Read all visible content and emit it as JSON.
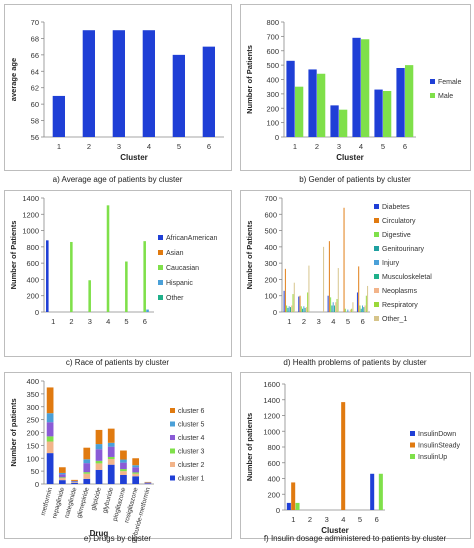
{
  "colors": {
    "blue": "#1f3fd6",
    "green": "#7fe04a",
    "orange": "#e07a10",
    "lightblue": "#4aa0d8",
    "seagreen": "#1fb08a",
    "red": "#d62828",
    "lime": "#9ad83a",
    "teal": "#1fa0a0",
    "peach": "#f2b48a",
    "violet": "#8a5bd6",
    "pink": "#f08ab4",
    "tan": "#d6c48a",
    "mauve": "#c0a0c8"
  },
  "chart_data": [
    {
      "type": "bar",
      "title": "",
      "caption": "a) Average age of patients by cluster",
      "xlabel": "Cluster",
      "ylabel": "average age",
      "ylim": [
        56,
        70
      ],
      "yticks": [
        56,
        58,
        60,
        62,
        64,
        66,
        68,
        70
      ],
      "categories": [
        "1",
        "2",
        "3",
        "4",
        "5",
        "6"
      ],
      "series": [
        {
          "color": "#1f3fd6",
          "values": [
            61,
            69,
            69,
            69,
            66,
            67
          ]
        }
      ],
      "legend": null
    },
    {
      "type": "bar",
      "title": "",
      "caption": "b) Gender of patients by cluster",
      "xlabel": "Cluster",
      "ylabel": "Number of Patients",
      "ylim": [
        0,
        800
      ],
      "yticks": [
        0,
        100,
        200,
        300,
        400,
        500,
        600,
        700,
        800
      ],
      "categories": [
        "1",
        "2",
        "3",
        "4",
        "5",
        "6"
      ],
      "series": [
        {
          "name": "Female",
          "color": "#1f3fd6",
          "values": [
            530,
            470,
            220,
            690,
            330,
            480
          ]
        },
        {
          "name": "Male",
          "color": "#7fe04a",
          "values": [
            350,
            440,
            190,
            680,
            320,
            500
          ]
        }
      ],
      "legend": "right"
    },
    {
      "type": "bar",
      "title": "",
      "caption": "c) Race of patients by cluster",
      "xlabel": "",
      "ylabel": "Number of Patients",
      "ylim": [
        0,
        1400
      ],
      "yticks": [
        0,
        200,
        400,
        600,
        800,
        1000,
        1200,
        1400
      ],
      "categories": [
        "1",
        "2",
        "3",
        "4",
        "5",
        "6"
      ],
      "series": [
        {
          "name": "AfricanAmerican",
          "color": "#1f3fd6",
          "values": [
            880,
            0,
            0,
            0,
            0,
            0
          ]
        },
        {
          "name": "Asian",
          "color": "#e07a10",
          "values": [
            0,
            0,
            0,
            0,
            0,
            0
          ]
        },
        {
          "name": "Caucasian",
          "color": "#7fe04a",
          "values": [
            0,
            860,
            390,
            1310,
            620,
            870
          ]
        },
        {
          "name": "Hispanic",
          "color": "#4aa0d8",
          "values": [
            0,
            0,
            0,
            0,
            0,
            30
          ]
        },
        {
          "name": "Other",
          "color": "#1fb08a",
          "values": [
            0,
            0,
            0,
            0,
            0,
            0
          ]
        }
      ],
      "legend": "right"
    },
    {
      "type": "bar",
      "title": "",
      "caption": "d) Health problems of patients by cluster",
      "xlabel": "",
      "ylabel": "Number of Patients",
      "ylim": [
        0,
        700
      ],
      "yticks": [
        0,
        100,
        200,
        300,
        400,
        500,
        600,
        700
      ],
      "categories": [
        "1",
        "2",
        "3",
        "4",
        "5",
        "6"
      ],
      "series": [
        {
          "name": "Diabetes",
          "color": "#1f3fd6",
          "values": [
            130,
            95,
            0,
            100,
            0,
            120
          ]
        },
        {
          "name": "Circulatory",
          "color": "#e07a10",
          "values": [
            265,
            100,
            0,
            435,
            640,
            280
          ]
        },
        {
          "name": "Digestive",
          "color": "#7fe04a",
          "values": [
            40,
            35,
            0,
            90,
            20,
            40
          ]
        },
        {
          "name": "Genitourinary",
          "color": "#1fa0a0",
          "values": [
            25,
            20,
            0,
            40,
            0,
            20
          ]
        },
        {
          "name": "Injury",
          "color": "#4aa0d8",
          "values": [
            35,
            35,
            0,
            60,
            15,
            40
          ]
        },
        {
          "name": "Musculoskeletal",
          "color": "#1fb08a",
          "values": [
            30,
            25,
            0,
            40,
            0,
            30
          ]
        },
        {
          "name": "Neoplasms",
          "color": "#f2b48a",
          "values": [
            40,
            30,
            0,
            60,
            15,
            40
          ]
        },
        {
          "name": "Respiratory",
          "color": "#9ad83a",
          "values": [
            110,
            120,
            0,
            80,
            20,
            100
          ]
        },
        {
          "name": "Other_1",
          "color": "#d6c48a",
          "values": [
            180,
            285,
            400,
            270,
            60,
            160
          ]
        }
      ],
      "legend": "right"
    },
    {
      "type": "bar",
      "stacked": true,
      "title": "",
      "caption": "e) Drugs by cluster",
      "xlabel": "Drug",
      "ylabel": "Number of patients",
      "ylim": [
        0,
        400
      ],
      "yticks": [
        0,
        50,
        100,
        150,
        200,
        250,
        300,
        350,
        400
      ],
      "categories": [
        "metformin",
        "repaglinide",
        "nateglinide",
        "glimepiride",
        "glipizide",
        "glyburide",
        "pioglitazone",
        "rosiglitazone",
        "glyburide-metformin"
      ],
      "series": [
        {
          "name": "cluster 1",
          "color": "#1f3fd6",
          "values": [
            120,
            15,
            4,
            20,
            55,
            75,
            35,
            30,
            2
          ]
        },
        {
          "name": "cluster 2",
          "color": "#f2b48a",
          "values": [
            45,
            8,
            2,
            20,
            25,
            22,
            15,
            10,
            1
          ]
        },
        {
          "name": "cluster 3",
          "color": "#7fe04a",
          "values": [
            20,
            3,
            1,
            6,
            10,
            8,
            8,
            5,
            0
          ]
        },
        {
          "name": "cluster 4",
          "color": "#8a5bd6",
          "values": [
            55,
            12,
            3,
            35,
            45,
            40,
            25,
            20,
            2
          ]
        },
        {
          "name": "cluster 5",
          "color": "#4aa0d8",
          "values": [
            35,
            5,
            2,
            15,
            20,
            15,
            12,
            8,
            1
          ]
        },
        {
          "name": "cluster 6",
          "color": "#e07a10",
          "values": [
            100,
            22,
            4,
            45,
            55,
            55,
            35,
            27,
            2
          ]
        }
      ],
      "legend": "right"
    },
    {
      "type": "bar",
      "title": "",
      "caption": "f) Insulin dosage administered to patients by cluster",
      "xlabel": "Cluster",
      "ylabel": "Number of patients",
      "ylim": [
        0,
        1600
      ],
      "yticks": [
        0,
        200,
        400,
        600,
        800,
        1000,
        1200,
        1400,
        1600
      ],
      "categories": [
        "1",
        "2",
        "3",
        "4",
        "5",
        "6"
      ],
      "series": [
        {
          "name": "InsulinDown",
          "color": "#1f3fd6",
          "values": [
            90,
            0,
            0,
            0,
            0,
            460
          ]
        },
        {
          "name": "InsulinSteady",
          "color": "#e07a10",
          "values": [
            350,
            0,
            0,
            1370,
            0,
            0
          ]
        },
        {
          "name": "InsulinUp",
          "color": "#7fe04a",
          "values": [
            90,
            0,
            0,
            0,
            0,
            460
          ]
        }
      ],
      "legend": "right"
    }
  ]
}
